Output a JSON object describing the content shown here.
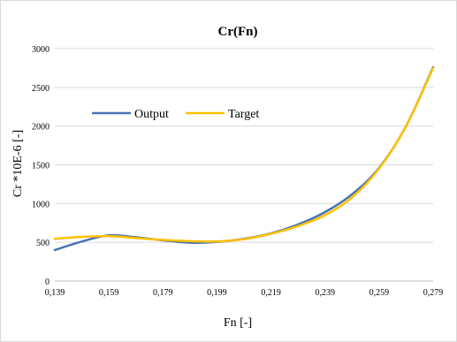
{
  "chart_data": {
    "type": "line",
    "title": "Cr(Fn)",
    "xlabel": "Fn [-]",
    "ylabel": "Cr *10E-6 [-]",
    "xlim": [
      0.139,
      0.279
    ],
    "ylim": [
      0,
      3000
    ],
    "x_ticks": [
      "0,139",
      "0,159",
      "0,179",
      "0,199",
      "0,219",
      "0,239",
      "0,259",
      "0,279"
    ],
    "y_ticks": [
      "0",
      "500",
      "1000",
      "1500",
      "2000",
      "2500",
      "3000"
    ],
    "grid": "horizontal",
    "legend_position": "left-middle",
    "series": [
      {
        "name": "Output",
        "color": "#4a72b0",
        "x": [
          0.139,
          0.149,
          0.159,
          0.169,
          0.179,
          0.189,
          0.199,
          0.209,
          0.219,
          0.229,
          0.239,
          0.249,
          0.259,
          0.269,
          0.279
        ],
        "y": [
          400,
          510,
          590,
          565,
          525,
          495,
          505,
          545,
          615,
          730,
          890,
          1120,
          1460,
          2000,
          2760
        ]
      },
      {
        "name": "Target",
        "color": "#ffc000",
        "x": [
          0.139,
          0.149,
          0.159,
          0.169,
          0.179,
          0.189,
          0.199,
          0.209,
          0.219,
          0.229,
          0.239,
          0.249,
          0.259,
          0.269,
          0.279
        ],
        "y": [
          545,
          570,
          580,
          555,
          530,
          515,
          510,
          540,
          610,
          710,
          850,
          1080,
          1450,
          2000,
          2750
        ]
      }
    ]
  }
}
